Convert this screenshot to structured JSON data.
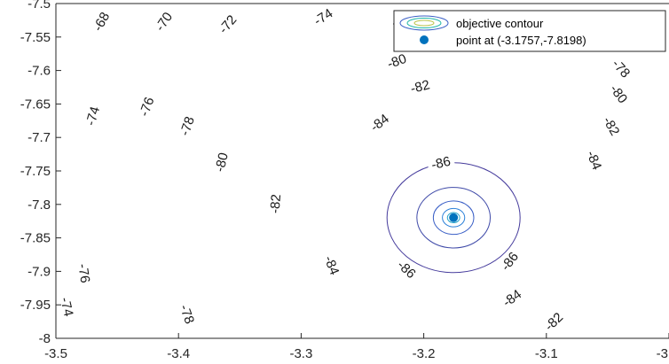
{
  "chart_data": {
    "type": "contour",
    "xlim": [
      -3.5,
      -3.0
    ],
    "ylim": [
      -8.0,
      -7.5
    ],
    "x_ticks": [
      "-3.5",
      "-3.4",
      "-3.3",
      "-3.2",
      "-3.1",
      "-3"
    ],
    "y_ticks": [
      "-7.5",
      "-7.55",
      "-7.6",
      "-7.65",
      "-7.7",
      "-7.75",
      "-7.8",
      "-7.85",
      "-7.9",
      "-7.95",
      "-8"
    ],
    "center": {
      "x": -3.1757,
      "y": -7.8198
    },
    "levels": [
      {
        "value": -86,
        "label": "-86",
        "color": "#453b9c"
      },
      {
        "value": -84,
        "label": "-84",
        "color": "#3f4aa8"
      },
      {
        "value": -82,
        "label": "-82",
        "color": "#3a5fc6"
      },
      {
        "value": -80,
        "label": "-80",
        "color": "#2a80d8"
      },
      {
        "value": -78,
        "label": "-78",
        "color": "#1ea1c9"
      },
      {
        "value": -76,
        "label": "-76",
        "color": "#1fb6a6"
      },
      {
        "value": -74,
        "label": "-74",
        "color": "#52bf7d"
      },
      {
        "value": -72,
        "label": "-72",
        "color": "#8cc45d"
      },
      {
        "value": -70,
        "label": "-70",
        "color": "#b9c247"
      },
      {
        "value": -68,
        "label": "-68",
        "color": "#dcc23d"
      }
    ],
    "contour_labels": [
      {
        "text": "-68",
        "x": -3.463,
        "y": -7.527
      },
      {
        "text": "-70",
        "x": -3.412,
        "y": -7.527
      },
      {
        "text": "-72",
        "x": -3.36,
        "y": -7.531
      },
      {
        "text": "-74",
        "x": -3.282,
        "y": -7.52
      },
      {
        "text": "-76",
        "x": -3.218,
        "y": -7.526
      },
      {
        "text": "-78",
        "x": -3.213,
        "y": -7.558
      },
      {
        "text": "-80",
        "x": -3.222,
        "y": -7.586
      },
      {
        "text": "-82",
        "x": -3.203,
        "y": -7.624
      },
      {
        "text": "-84",
        "x": -3.236,
        "y": -7.678
      },
      {
        "text": "-86",
        "x": -3.186,
        "y": -7.738
      },
      {
        "text": "-74",
        "x": -3.47,
        "y": -7.668
      },
      {
        "text": "-76",
        "x": -3.426,
        "y": -7.654
      },
      {
        "text": "-78",
        "x": -3.393,
        "y": -7.683
      },
      {
        "text": "-80",
        "x": -3.365,
        "y": -7.737
      },
      {
        "text": "-82",
        "x": -3.321,
        "y": -7.799
      },
      {
        "text": "-84",
        "x": -3.275,
        "y": -7.891
      },
      {
        "text": "-86",
        "x": -3.214,
        "y": -7.897
      },
      {
        "text": "-86",
        "x": -3.13,
        "y": -7.885
      },
      {
        "text": "-84",
        "x": -3.128,
        "y": -7.94
      },
      {
        "text": "-82",
        "x": -3.094,
        "y": -7.975
      },
      {
        "text": "-84",
        "x": -3.061,
        "y": -7.734
      },
      {
        "text": "-82",
        "x": -3.047,
        "y": -7.683
      },
      {
        "text": "-80",
        "x": -3.041,
        "y": -7.635
      },
      {
        "text": "-78",
        "x": -3.039,
        "y": -7.597
      },
      {
        "text": "-76",
        "x": -3.477,
        "y": -7.903
      },
      {
        "text": "-74",
        "x": -3.491,
        "y": -7.953
      },
      {
        "text": "-78",
        "x": -3.393,
        "y": -7.964
      }
    ],
    "legend": {
      "position": "top-right",
      "entries": [
        {
          "label": "objective contour",
          "marker": "contour"
        },
        {
          "label": "point at (-3.1757,-7.8198)",
          "marker": "point",
          "color": "#0072bd"
        }
      ]
    },
    "grid": false
  }
}
